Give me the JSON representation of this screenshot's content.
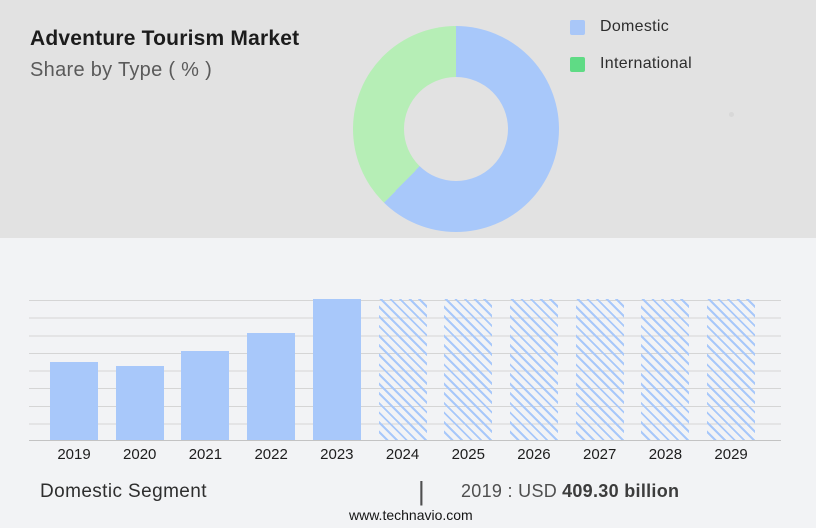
{
  "header": {
    "title": "Adventure Tourism Market",
    "subtitle": "Share by Type ( % )"
  },
  "legend": {
    "items": [
      {
        "label": "Domestic",
        "color": "#a9c7f8"
      },
      {
        "label": "International",
        "color": "#5fdb85"
      }
    ]
  },
  "footer": {
    "segment_label": "Domestic Segment",
    "divider": "|",
    "stat_prefix": "2019 : USD",
    "stat_value": "409.30 billion",
    "website": "www.technavio.com"
  },
  "chart_data": [
    {
      "type": "pie",
      "subtype": "donut",
      "title": "Adventure Tourism Market Share by Type ( % )",
      "labels": [
        "Domestic",
        "International"
      ],
      "values_pct_est": [
        62.3,
        37.7
      ],
      "segment_end_deg": [
        224.3,
        360
      ],
      "colors": [
        "#a8c8fa",
        "#b6eeb6"
      ],
      "legend_position": "right",
      "start_angle": "12 o'clock, clockwise"
    },
    {
      "type": "bar",
      "title": "Domestic Segment",
      "categories": [
        "2019",
        "2020",
        "2021",
        "2022",
        "2023",
        "2024",
        "2025",
        "2026",
        "2027",
        "2028",
        "2029"
      ],
      "values_relative": [
        0.553,
        0.528,
        0.628,
        0.759,
        1,
        1,
        1,
        1,
        1,
        1,
        1
      ],
      "forecast_mask": [
        false,
        false,
        false,
        false,
        false,
        true,
        true,
        true,
        true,
        true,
        true
      ],
      "bar_color": "#a8c8fa",
      "forecast_style": "diagonal-hatch",
      "anchor_note": "2019 : USD 409.30 billion",
      "xlabel": "",
      "ylabel": "",
      "yaxis_labels_visible": false,
      "gridline_count": 9,
      "note": "Bars 2024-2029 are full-height hatched forecast placeholders; no numeric labels shown"
    }
  ]
}
